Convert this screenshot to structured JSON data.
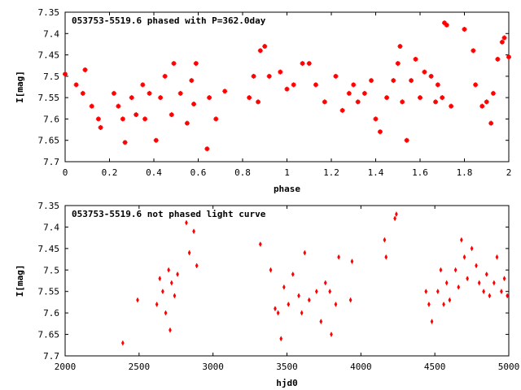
{
  "chart_data": [
    {
      "type": "scatter",
      "title": "053753-5519.6 phased with P=362.0day",
      "xlabel": "phase",
      "ylabel": "I[mag]",
      "xlim": [
        0,
        2
      ],
      "ylim": [
        7.7,
        7.35
      ],
      "y_inverted": true,
      "x_ticks": [
        "0",
        "0.2",
        "0.4",
        "0.6",
        "0.8",
        "1",
        "1.2",
        "1.4",
        "1.6",
        "1.8",
        "2"
      ],
      "y_ticks": [
        "7.35",
        "7.4",
        "7.45",
        "7.5",
        "7.55",
        "7.6",
        "7.65",
        "7.7"
      ],
      "grid": false,
      "legend": "none",
      "marker": "plus",
      "color": "#ff0000",
      "points": [
        [
          0.0,
          7.495
        ],
        [
          0.05,
          7.52
        ],
        [
          0.08,
          7.54
        ],
        [
          0.09,
          7.485
        ],
        [
          0.12,
          7.57
        ],
        [
          0.15,
          7.6
        ],
        [
          0.16,
          7.62
        ],
        [
          0.22,
          7.54
        ],
        [
          0.24,
          7.57
        ],
        [
          0.26,
          7.6
        ],
        [
          0.27,
          7.655
        ],
        [
          0.3,
          7.55
        ],
        [
          0.32,
          7.59
        ],
        [
          0.35,
          7.52
        ],
        [
          0.36,
          7.6
        ],
        [
          0.38,
          7.54
        ],
        [
          0.41,
          7.65
        ],
        [
          0.43,
          7.55
        ],
        [
          0.45,
          7.5
        ],
        [
          0.48,
          7.59
        ],
        [
          0.49,
          7.47
        ],
        [
          0.52,
          7.54
        ],
        [
          0.55,
          7.61
        ],
        [
          0.57,
          7.51
        ],
        [
          0.58,
          7.565
        ],
        [
          0.59,
          7.47
        ],
        [
          0.64,
          7.67
        ],
        [
          0.65,
          7.55
        ],
        [
          0.68,
          7.6
        ],
        [
          0.72,
          7.535
        ],
        [
          0.83,
          7.55
        ],
        [
          0.85,
          7.5
        ],
        [
          0.87,
          7.56
        ],
        [
          0.88,
          7.44
        ],
        [
          0.9,
          7.43
        ],
        [
          0.92,
          7.5
        ],
        [
          0.97,
          7.49
        ],
        [
          1.0,
          7.53
        ],
        [
          1.03,
          7.52
        ],
        [
          1.07,
          7.47
        ],
        [
          1.1,
          7.47
        ],
        [
          1.13,
          7.52
        ],
        [
          1.17,
          7.56
        ],
        [
          1.22,
          7.5
        ],
        [
          1.25,
          7.58
        ],
        [
          1.28,
          7.54
        ],
        [
          1.3,
          7.52
        ],
        [
          1.32,
          7.56
        ],
        [
          1.35,
          7.54
        ],
        [
          1.38,
          7.51
        ],
        [
          1.4,
          7.6
        ],
        [
          1.42,
          7.63
        ],
        [
          1.45,
          7.55
        ],
        [
          1.48,
          7.51
        ],
        [
          1.5,
          7.47
        ],
        [
          1.51,
          7.43
        ],
        [
          1.52,
          7.56
        ],
        [
          1.54,
          7.65
        ],
        [
          1.56,
          7.51
        ],
        [
          1.58,
          7.46
        ],
        [
          1.6,
          7.55
        ],
        [
          1.62,
          7.49
        ],
        [
          1.65,
          7.5
        ],
        [
          1.67,
          7.56
        ],
        [
          1.68,
          7.52
        ],
        [
          1.7,
          7.55
        ],
        [
          1.71,
          7.375
        ],
        [
          1.72,
          7.38
        ],
        [
          1.74,
          7.57
        ],
        [
          1.8,
          7.39
        ],
        [
          1.84,
          7.44
        ],
        [
          1.85,
          7.52
        ],
        [
          1.88,
          7.57
        ],
        [
          1.9,
          7.56
        ],
        [
          1.92,
          7.61
        ],
        [
          1.93,
          7.54
        ],
        [
          1.95,
          7.46
        ],
        [
          1.97,
          7.42
        ],
        [
          1.98,
          7.41
        ],
        [
          2.0,
          7.455
        ]
      ]
    },
    {
      "type": "scatter",
      "title": "053753-5519.6 not phased light curve",
      "xlabel": "hjd0",
      "ylabel": "I[mag]",
      "xlim": [
        2000,
        5000
      ],
      "ylim": [
        7.7,
        7.35
      ],
      "y_inverted": true,
      "x_ticks": [
        "2000",
        "2500",
        "3000",
        "3500",
        "4000",
        "4500",
        "5000"
      ],
      "y_ticks": [
        "7.35",
        "7.4",
        "7.45",
        "7.5",
        "7.55",
        "7.6",
        "7.65",
        "7.7"
      ],
      "grid": false,
      "legend": "none",
      "marker": "diamond",
      "color": "#ff0000",
      "points": [
        [
          2390,
          7.67
        ],
        [
          2490,
          7.57
        ],
        [
          2620,
          7.58
        ],
        [
          2640,
          7.52
        ],
        [
          2660,
          7.55
        ],
        [
          2680,
          7.6
        ],
        [
          2700,
          7.5
        ],
        [
          2710,
          7.64
        ],
        [
          2720,
          7.53
        ],
        [
          2740,
          7.56
        ],
        [
          2760,
          7.51
        ],
        [
          2820,
          7.39
        ],
        [
          2840,
          7.46
        ],
        [
          2870,
          7.41
        ],
        [
          2890,
          7.49
        ],
        [
          3320,
          7.44
        ],
        [
          3390,
          7.5
        ],
        [
          3420,
          7.59
        ],
        [
          3440,
          7.6
        ],
        [
          3460,
          7.66
        ],
        [
          3480,
          7.54
        ],
        [
          3510,
          7.58
        ],
        [
          3540,
          7.51
        ],
        [
          3580,
          7.56
        ],
        [
          3600,
          7.6
        ],
        [
          3620,
          7.46
        ],
        [
          3650,
          7.57
        ],
        [
          3700,
          7.55
        ],
        [
          3730,
          7.62
        ],
        [
          3760,
          7.53
        ],
        [
          3790,
          7.55
        ],
        [
          3800,
          7.65
        ],
        [
          3830,
          7.58
        ],
        [
          3850,
          7.47
        ],
        [
          3930,
          7.57
        ],
        [
          3940,
          7.48
        ],
        [
          4160,
          7.43
        ],
        [
          4170,
          7.47
        ],
        [
          4230,
          7.38
        ],
        [
          4240,
          7.37
        ],
        [
          4440,
          7.55
        ],
        [
          4460,
          7.58
        ],
        [
          4480,
          7.62
        ],
        [
          4520,
          7.55
        ],
        [
          4540,
          7.5
        ],
        [
          4560,
          7.58
        ],
        [
          4580,
          7.53
        ],
        [
          4600,
          7.57
        ],
        [
          4640,
          7.5
        ],
        [
          4660,
          7.54
        ],
        [
          4680,
          7.43
        ],
        [
          4700,
          7.47
        ],
        [
          4720,
          7.52
        ],
        [
          4750,
          7.45
        ],
        [
          4780,
          7.49
        ],
        [
          4800,
          7.53
        ],
        [
          4830,
          7.55
        ],
        [
          4850,
          7.51
        ],
        [
          4870,
          7.56
        ],
        [
          4900,
          7.53
        ],
        [
          4920,
          7.47
        ],
        [
          4950,
          7.55
        ],
        [
          4970,
          7.52
        ],
        [
          4990,
          7.56
        ]
      ]
    }
  ]
}
